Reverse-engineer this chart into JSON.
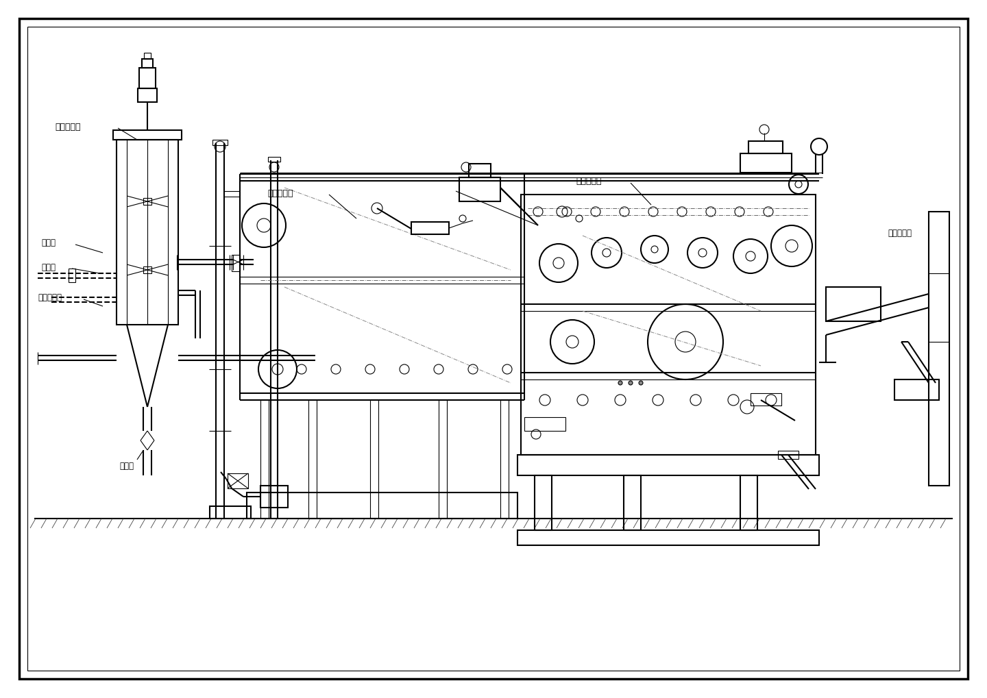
{
  "bg_color": "#ffffff",
  "page_bg": "#ffffff",
  "line_color": "#000000",
  "fig_width": 14.4,
  "fig_height": 10.2,
  "labels": {
    "njjbg": "絮凝搞拌罐",
    "jnig": "进泥管",
    "yjig": "药剂管",
    "lbcxg": "滤布冲洗管",
    "fkg": "放空管",
    "zltsg": "重力脱水区",
    "jxyzq": "机械压榨区",
    "lwssjj": "螺旋输送机"
  }
}
